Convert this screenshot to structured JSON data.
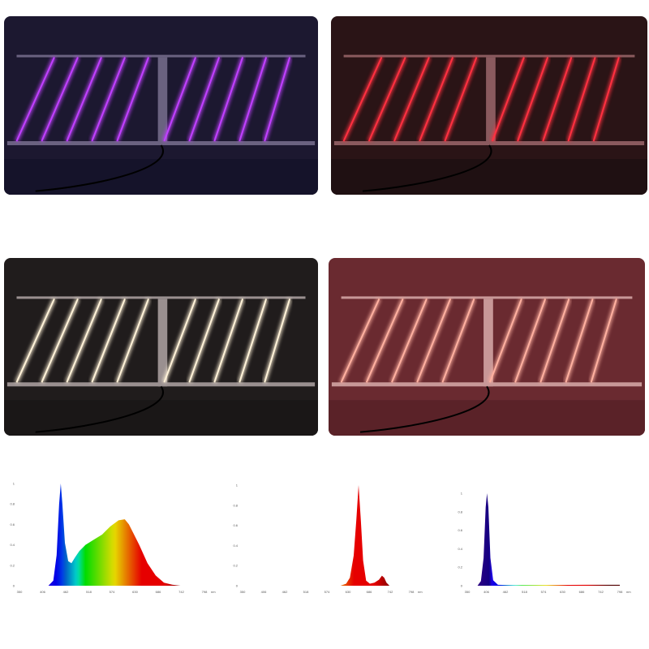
{
  "photos": [
    {
      "label": "purple",
      "background": "#1c1830",
      "floor": "#15132a",
      "led": "#c040ff",
      "frame": "#6a6280"
    },
    {
      "label": "red",
      "background": "#2a1416",
      "floor": "#1f1012",
      "led": "#ff3040",
      "frame": "#8a5a5e"
    },
    {
      "label": "white",
      "background": "#201c1c",
      "floor": "#1a1717",
      "led": "#fff2d8",
      "frame": "#9a9090"
    },
    {
      "label": "pink",
      "background": "#6a2a30",
      "floor": "#5a2228",
      "led": "#ffb0a0",
      "frame": "#c89898"
    }
  ],
  "chart_data": [
    {
      "type": "area",
      "xlabel_unit": "nm",
      "xticks": [
        350,
        406,
        462,
        518,
        574,
        630,
        686,
        742,
        798
      ],
      "yticks": [
        0,
        0.2,
        0.4,
        0.6,
        0.8,
        1
      ],
      "xlim": [
        350,
        798
      ],
      "ylim": [
        0,
        1
      ],
      "grid": false,
      "x": [
        350,
        420,
        432,
        440,
        446,
        450,
        454,
        460,
        468,
        476,
        485,
        495,
        510,
        530,
        550,
        570,
        590,
        605,
        615,
        625,
        640,
        660,
        680,
        700,
        720,
        740,
        798
      ],
      "y": [
        0,
        0,
        0.05,
        0.3,
        0.8,
        1.0,
        0.8,
        0.42,
        0.24,
        0.22,
        0.28,
        0.34,
        0.4,
        0.45,
        0.5,
        0.58,
        0.64,
        0.65,
        0.6,
        0.52,
        0.4,
        0.22,
        0.1,
        0.03,
        0.01,
        0,
        0
      ]
    },
    {
      "type": "area",
      "xlabel_unit": "nm",
      "xticks": [
        350,
        406,
        462,
        518,
        574,
        630,
        686,
        742,
        798
      ],
      "yticks": [
        0,
        0.2,
        0.4,
        0.6,
        0.8,
        1
      ],
      "xlim": [
        350,
        798
      ],
      "ylim": [
        0,
        1
      ],
      "grid": false,
      "x": [
        350,
        610,
        625,
        635,
        645,
        652,
        658,
        664,
        670,
        678,
        688,
        700,
        712,
        720,
        726,
        732,
        740,
        798
      ],
      "y": [
        0,
        0,
        0.02,
        0.08,
        0.3,
        0.65,
        1.0,
        0.65,
        0.25,
        0.05,
        0.02,
        0.03,
        0.06,
        0.1,
        0.08,
        0.03,
        0,
        0
      ]
    },
    {
      "type": "area",
      "xlabel_unit": "nm",
      "xticks": [
        350,
        406,
        462,
        518,
        574,
        630,
        686,
        742,
        798
      ],
      "yticks": [
        0,
        0.2,
        0.4,
        0.6,
        0.8,
        1
      ],
      "xlim": [
        350,
        798
      ],
      "ylim": [
        0,
        1
      ],
      "grid": false,
      "x": [
        350,
        380,
        390,
        398,
        404,
        408,
        412,
        418,
        426,
        440,
        500,
        700,
        798
      ],
      "y": [
        0,
        0,
        0.05,
        0.3,
        0.85,
        1.0,
        0.85,
        0.3,
        0.06,
        0.01,
        0.005,
        0.01,
        0.01
      ]
    }
  ]
}
